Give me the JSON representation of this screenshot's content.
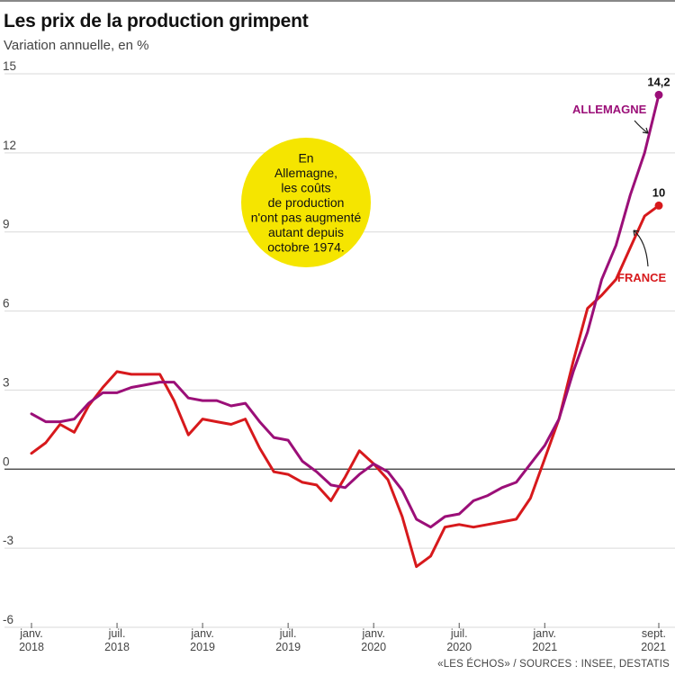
{
  "title": "Les prix de la production grimpent",
  "subtitle": "Variation annuelle, en %",
  "source": "«LES ÉCHOS» / SOURCES : INSEE, DESTATIS",
  "colors": {
    "allemagne": "#9b0f78",
    "france": "#d7191c",
    "annotation_bg": "#f5e500",
    "zero_line": "#333333",
    "grid": "#d9d9d9"
  },
  "chart_data": {
    "type": "line",
    "title": "Les prix de la production grimpent",
    "subtitle": "Variation annuelle, en %",
    "ylim": [
      -6,
      15
    ],
    "y_ticks": [
      15,
      12,
      9,
      6,
      3,
      0,
      -3,
      -6
    ],
    "y_tick_labels": [
      "15",
      "12",
      "9",
      "6",
      "3",
      "0",
      "-3",
      "-6"
    ],
    "grid": true,
    "x_ticks": [
      {
        "month_index": 0,
        "line1": "janv.",
        "line2": "2018"
      },
      {
        "month_index": 6,
        "line1": "juil.",
        "line2": "2018"
      },
      {
        "month_index": 12,
        "line1": "janv.",
        "line2": "2019"
      },
      {
        "month_index": 18,
        "line1": "juil.",
        "line2": "2019"
      },
      {
        "month_index": 24,
        "line1": "janv.",
        "line2": "2020"
      },
      {
        "month_index": 30,
        "line1": "juil.",
        "line2": "2020"
      },
      {
        "month_index": 36,
        "line1": "janv.",
        "line2": "2021"
      },
      {
        "month_index": 44,
        "line1": "sept.",
        "line2": "2021"
      }
    ],
    "x": [
      "2018-01",
      "2018-02",
      "2018-03",
      "2018-04",
      "2018-05",
      "2018-06",
      "2018-07",
      "2018-08",
      "2018-09",
      "2018-10",
      "2018-11",
      "2018-12",
      "2019-01",
      "2019-02",
      "2019-03",
      "2019-04",
      "2019-05",
      "2019-06",
      "2019-07",
      "2019-08",
      "2019-09",
      "2019-10",
      "2019-11",
      "2019-12",
      "2020-01",
      "2020-02",
      "2020-03",
      "2020-04",
      "2020-05",
      "2020-06",
      "2020-07",
      "2020-08",
      "2020-09",
      "2020-10",
      "2020-11",
      "2020-12",
      "2021-01",
      "2021-02",
      "2021-03",
      "2021-04",
      "2021-05",
      "2021-06",
      "2021-07",
      "2021-08",
      "2021-09"
    ],
    "series": [
      {
        "name": "ALLEMAGNE",
        "color": "#9b0f78",
        "values": [
          2.1,
          1.8,
          1.8,
          1.9,
          2.5,
          2.9,
          2.9,
          3.1,
          3.2,
          3.3,
          3.3,
          2.7,
          2.6,
          2.6,
          2.4,
          2.5,
          1.8,
          1.2,
          1.1,
          0.3,
          -0.1,
          -0.6,
          -0.7,
          -0.2,
          0.2,
          -0.1,
          -0.8,
          -1.9,
          -2.2,
          -1.8,
          -1.7,
          -1.2,
          -1.0,
          -0.7,
          -0.5,
          0.2,
          0.9,
          1.9,
          3.7,
          5.2,
          7.2,
          8.5,
          10.4,
          12.0,
          14.2
        ]
      },
      {
        "name": "FRANCE",
        "color": "#d7191c",
        "values": [
          0.6,
          1.0,
          1.7,
          1.4,
          2.4,
          3.1,
          3.7,
          3.6,
          3.6,
          3.6,
          2.6,
          1.3,
          1.9,
          1.8,
          1.7,
          1.9,
          0.8,
          -0.1,
          -0.2,
          -0.5,
          -0.6,
          -1.2,
          -0.3,
          0.7,
          0.2,
          -0.4,
          -1.8,
          -3.7,
          -3.3,
          -2.2,
          -2.1,
          -2.2,
          -2.1,
          -2.0,
          -1.9,
          -1.1,
          0.4,
          1.9,
          4.1,
          6.1,
          6.6,
          7.2,
          8.4,
          9.6,
          10.0
        ]
      }
    ],
    "end_labels": [
      {
        "series": "ALLEMAGNE",
        "text": "14,2"
      },
      {
        "series": "FRANCE",
        "text": "10"
      }
    ],
    "annotation": "En Allemagne, les coûts de production n'ont pas augmenté autant depuis octobre 1974.",
    "annotation_lines": [
      "En",
      "Allemagne,",
      "les coûts",
      "de production",
      "n'ont pas augmenté",
      "autant depuis",
      "octobre 1974."
    ]
  }
}
